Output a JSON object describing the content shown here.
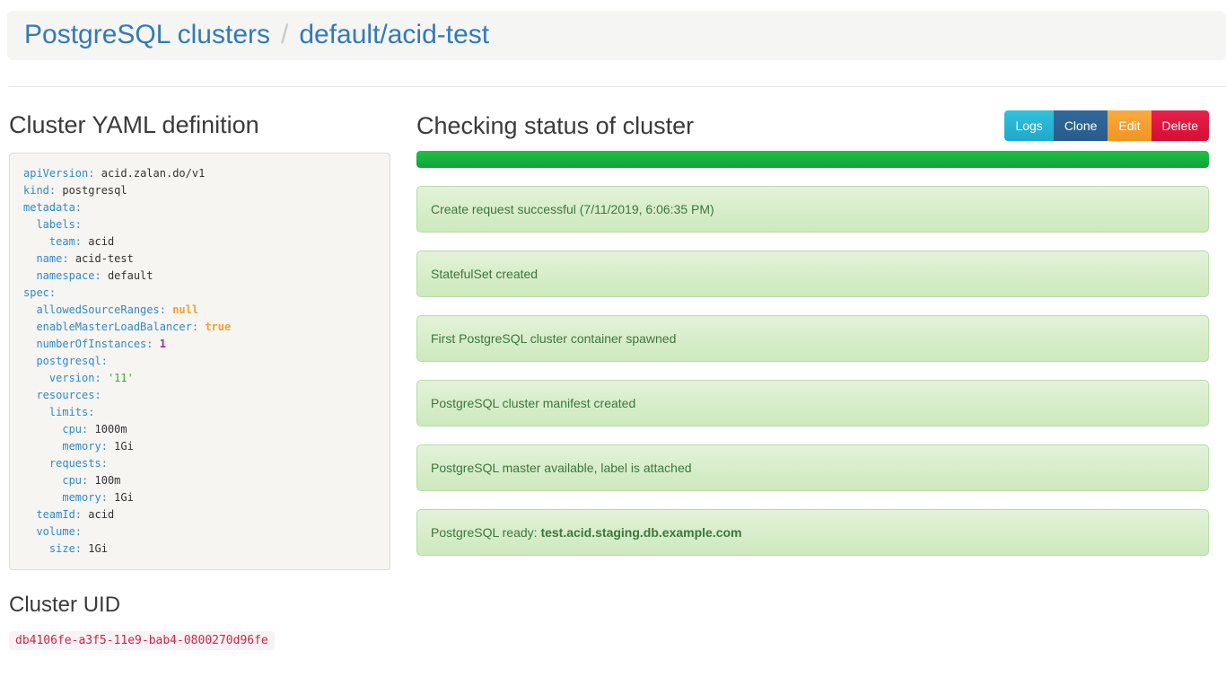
{
  "breadcrumb": {
    "root": "PostgreSQL clusters",
    "separator": "/",
    "current": "default/acid-test"
  },
  "yaml_section": {
    "title": "Cluster YAML definition",
    "lines": [
      {
        "indent": 0,
        "key": "apiVersion",
        "value": "acid.zalan.do/v1",
        "type": "plain"
      },
      {
        "indent": 0,
        "key": "kind",
        "value": "postgresql",
        "type": "plain"
      },
      {
        "indent": 0,
        "key": "metadata",
        "value": "",
        "type": "plain"
      },
      {
        "indent": 1,
        "key": "labels",
        "value": "",
        "type": "plain"
      },
      {
        "indent": 2,
        "key": "team",
        "value": "acid",
        "type": "plain"
      },
      {
        "indent": 1,
        "key": "name",
        "value": "acid-test",
        "type": "plain"
      },
      {
        "indent": 1,
        "key": "namespace",
        "value": "default",
        "type": "plain"
      },
      {
        "indent": 0,
        "key": "spec",
        "value": "",
        "type": "plain"
      },
      {
        "indent": 1,
        "key": "allowedSourceRanges",
        "value": "null",
        "type": "literal"
      },
      {
        "indent": 1,
        "key": "enableMasterLoadBalancer",
        "value": "true",
        "type": "literal"
      },
      {
        "indent": 1,
        "key": "numberOfInstances",
        "value": "1",
        "type": "number"
      },
      {
        "indent": 1,
        "key": "postgresql",
        "value": "",
        "type": "plain"
      },
      {
        "indent": 2,
        "key": "version",
        "value": "'11'",
        "type": "string"
      },
      {
        "indent": 1,
        "key": "resources",
        "value": "",
        "type": "plain"
      },
      {
        "indent": 2,
        "key": "limits",
        "value": "",
        "type": "plain"
      },
      {
        "indent": 3,
        "key": "cpu",
        "value": "1000m",
        "type": "plain"
      },
      {
        "indent": 3,
        "key": "memory",
        "value": "1Gi",
        "type": "plain"
      },
      {
        "indent": 2,
        "key": "requests",
        "value": "",
        "type": "plain"
      },
      {
        "indent": 3,
        "key": "cpu",
        "value": "100m",
        "type": "plain"
      },
      {
        "indent": 3,
        "key": "memory",
        "value": "1Gi",
        "type": "plain"
      },
      {
        "indent": 1,
        "key": "teamId",
        "value": "acid",
        "type": "plain"
      },
      {
        "indent": 1,
        "key": "volume",
        "value": "",
        "type": "plain"
      },
      {
        "indent": 2,
        "key": "size",
        "value": "1Gi",
        "type": "plain"
      }
    ]
  },
  "uid_section": {
    "title": "Cluster UID",
    "uid": "db4106fe-a3f5-11e9-bab4-0800270d96fe"
  },
  "status_section": {
    "title": "Checking status of cluster",
    "buttons": [
      {
        "name": "logs-button",
        "label": "Logs",
        "variant": "info",
        "color": "#26b3d7"
      },
      {
        "name": "clone-button",
        "label": "Clone",
        "variant": "primary",
        "color": "#2c6496"
      },
      {
        "name": "edit-button",
        "label": "Edit",
        "variant": "warning",
        "color": "#f5a02c"
      },
      {
        "name": "delete-button",
        "label": "Delete",
        "variant": "danger",
        "color": "#de1740"
      }
    ],
    "progress_percent": 100,
    "messages": [
      {
        "text": "Create request successful (7/11/2019, 6:06:35 PM)"
      },
      {
        "text": "StatefulSet created"
      },
      {
        "text": "First PostgreSQL cluster container spawned"
      },
      {
        "text": "PostgreSQL cluster manifest created"
      },
      {
        "text": "PostgreSQL master available, label is attached"
      },
      {
        "text": "PostgreSQL ready: ",
        "bold": "test.acid.staging.db.example.com"
      }
    ]
  },
  "colors": {
    "link_blue": "#337ab7",
    "header_bg": "#f5f5f4",
    "alert_text": "#3c763d",
    "alert_bg_top": "#e3f2da",
    "alert_bg_bottom": "#cde9bd",
    "alert_border": "#b7dca6",
    "progress_green": "#15b53c",
    "uid_text": "#c7254e",
    "uid_bg": "#f9f2f4",
    "yaml_key": "#3289c7",
    "yaml_literal": "#f5a02c",
    "yaml_number": "#a626a4",
    "yaml_string": "#44a340"
  }
}
